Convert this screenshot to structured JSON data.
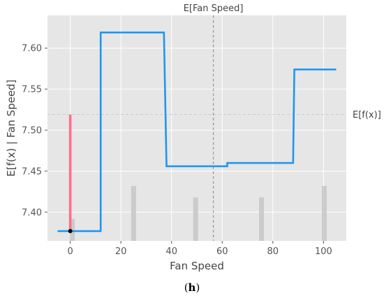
{
  "caption": "(h)",
  "chart_data": {
    "type": "line",
    "xlabel": "Fan Speed",
    "ylabel": "E[f(x) | Fan Speed]",
    "xlim": [
      -9,
      109
    ],
    "ylim": [
      7.365,
      7.64
    ],
    "x_ticks": [
      0,
      20,
      40,
      60,
      80,
      100
    ],
    "y_ticks": [
      7.4,
      7.45,
      7.5,
      7.55,
      7.6
    ],
    "y_tick_labels": [
      "7.40",
      "7.45",
      "7.50",
      "7.55",
      "7.60"
    ],
    "grid": true,
    "series": [
      {
        "name": "",
        "color": "#1e96f0",
        "step_points": [
          [
            -5,
            7.377
          ],
          [
            12,
            7.377
          ],
          [
            12,
            7.619
          ],
          [
            37,
            7.619
          ],
          [
            38,
            7.456
          ],
          [
            62,
            7.456
          ],
          [
            62,
            7.46
          ],
          [
            63,
            7.46
          ],
          [
            88,
            7.46
          ],
          [
            88.5,
            7.574
          ],
          [
            105,
            7.574
          ]
        ]
      }
    ],
    "reference_lines": [
      {
        "orientation": "vertical",
        "value": 56.5,
        "label": "E[Fan Speed]",
        "color": "#999999"
      },
      {
        "orientation": "horizontal",
        "value": 7.519,
        "label": "E[f(x)]",
        "color": "#cccccc"
      }
    ],
    "histogram_bars": [
      {
        "x": 0.8,
        "value": 7.392
      },
      {
        "x": 25,
        "value": 7.432
      },
      {
        "x": 49.5,
        "value": 7.418
      },
      {
        "x": 75.5,
        "value": 7.418
      },
      {
        "x": 100.3,
        "value": 7.432
      }
    ],
    "highlight_bar": {
      "x": 0,
      "value": 7.519,
      "color": "#ff6e8c"
    },
    "highlight_point": {
      "x": 0,
      "y": 7.377
    }
  }
}
